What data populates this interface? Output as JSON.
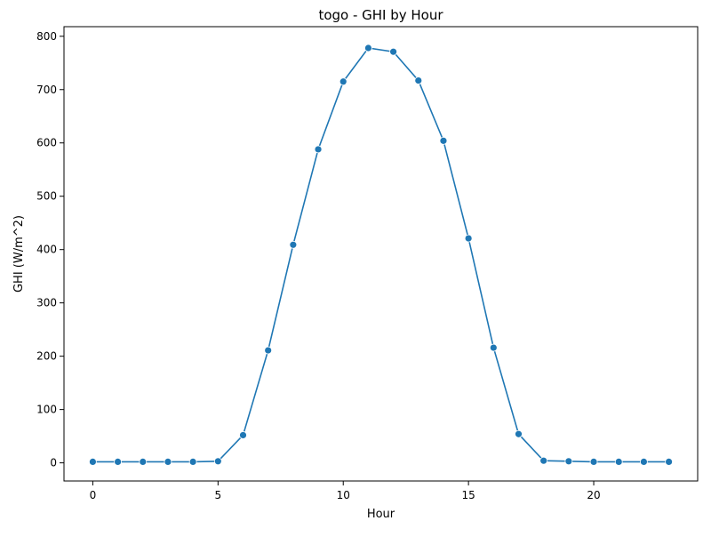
{
  "chart_data": {
    "type": "line",
    "title": "togo - GHI by Hour",
    "xlabel": "Hour",
    "ylabel": "GHI (W/m^2)",
    "x": [
      0,
      1,
      2,
      3,
      4,
      5,
      6,
      7,
      8,
      9,
      10,
      11,
      12,
      13,
      14,
      15,
      16,
      17,
      18,
      19,
      20,
      21,
      22,
      23
    ],
    "series": [
      {
        "values": [
          2,
          2,
          2,
          2,
          2,
          3,
          52,
          211,
          409,
          588,
          715,
          778,
          771,
          717,
          604,
          421,
          216,
          54,
          4,
          3,
          2,
          2,
          2,
          2
        ]
      }
    ],
    "xlim": [
      -1.15,
      24.15
    ],
    "ylim": [
      -34,
      818
    ],
    "xticks": [
      0,
      5,
      10,
      15,
      20
    ],
    "yticks": [
      0,
      100,
      200,
      300,
      400,
      500,
      600,
      700,
      800
    ],
    "grid": false,
    "legend": false,
    "line_color": "#1f77b4"
  }
}
